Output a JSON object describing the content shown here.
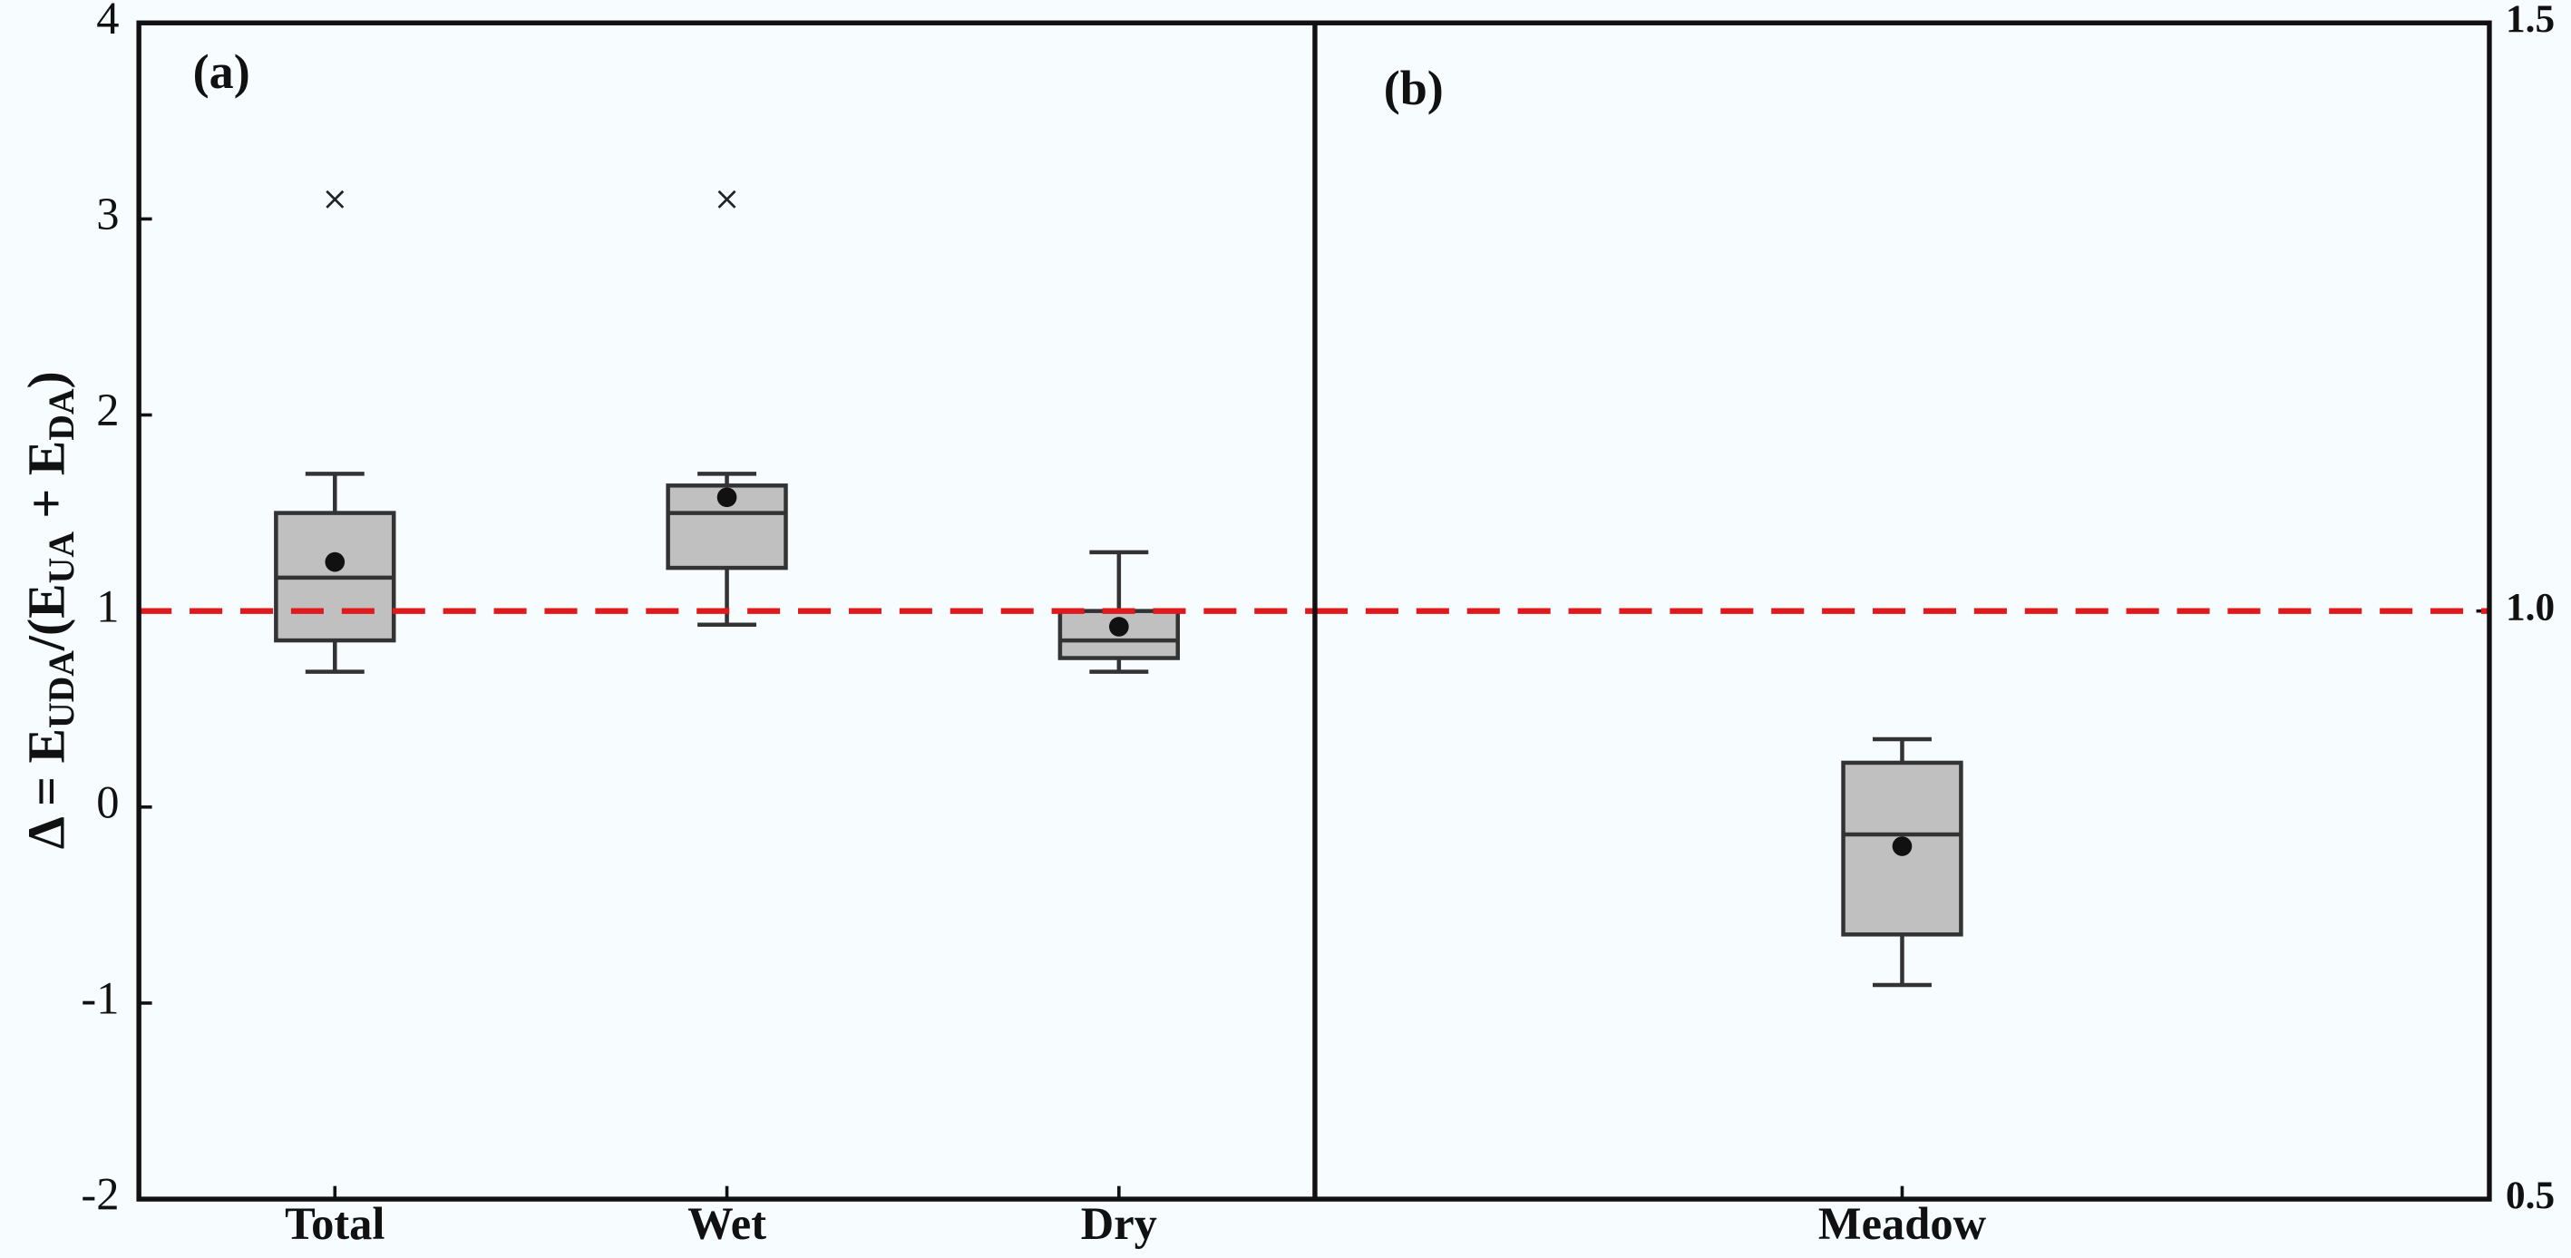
{
  "chart_data": [
    {
      "type": "box",
      "panel_label": "(a)",
      "yaxis_position": "left",
      "ylabel": [
        "Δ = E",
        "UDA",
        "/(E",
        "UA",
        " + E",
        "DA",
        ")"
      ],
      "categories": [
        "Total",
        "Wet",
        "Dry"
      ],
      "whisker_low": [
        0.69,
        0.93,
        0.69
      ],
      "q1": [
        0.85,
        1.22,
        0.76
      ],
      "median": [
        1.17,
        1.5,
        0.85
      ],
      "q3": [
        1.5,
        1.64,
        1.0
      ],
      "whisker_high": [
        1.7,
        1.7,
        1.3
      ],
      "mean": [
        1.25,
        1.58,
        0.92
      ],
      "outliers": [
        [
          3.1
        ],
        [
          3.1
        ],
        []
      ],
      "color": "#c0c0c0",
      "reference_line": 1,
      "reference_color": "#e0191c",
      "ylim": [
        -2,
        4
      ],
      "yticks": [
        -2,
        -1,
        0,
        1,
        2,
        3,
        4
      ]
    },
    {
      "type": "box",
      "panel_label": "(b)",
      "yaxis_position": "right",
      "categories": [
        "Meadow"
      ],
      "whisker_low": [
        0.682
      ],
      "q1": [
        0.725
      ],
      "median": [
        0.81
      ],
      "q3": [
        0.871
      ],
      "whisker_high": [
        0.891
      ],
      "mean": [
        0.8
      ],
      "outliers": [
        []
      ],
      "color": "#c0c0c0",
      "reference_line": 1,
      "reference_color": "#e0191c",
      "ylim": [
        0.5,
        1.5
      ],
      "yticks": [
        0.5,
        {
          "value": 1,
          "label": "1.0"
        },
        1.5
      ]
    }
  ]
}
